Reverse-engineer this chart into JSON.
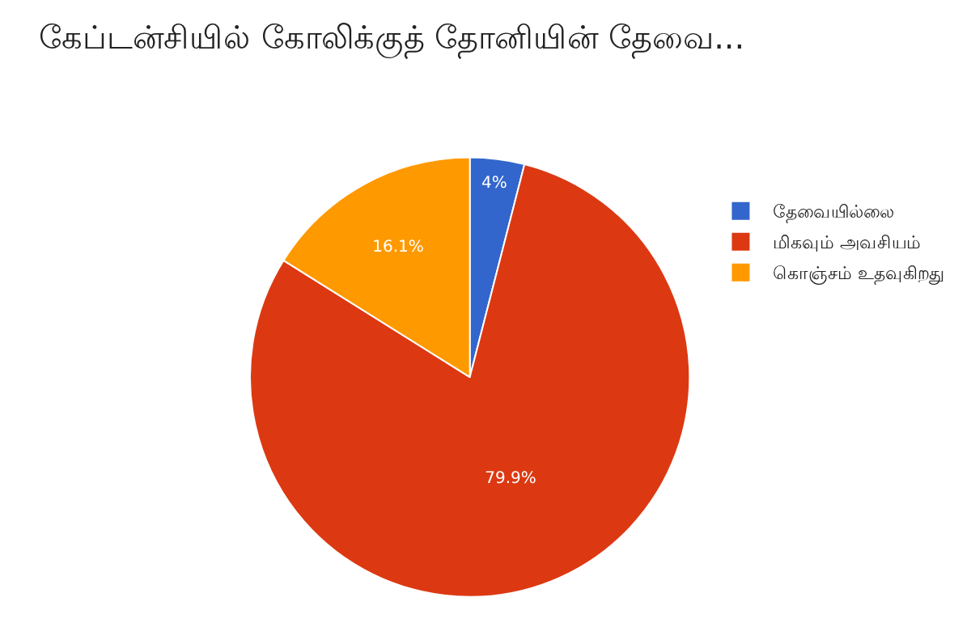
{
  "chart_data": {
    "type": "pie",
    "title": "கேப்டன்சியில் கோலிக்குத் தோனியின் தேவை...",
    "categories": [
      "தேவையில்லை",
      "மிகவும் அவசியம்",
      "கொஞ்சம் உதவுகிறது"
    ],
    "values": [
      4,
      79.9,
      16.1
    ],
    "value_labels": [
      "4%",
      "79.9%",
      "16.1%"
    ],
    "colors": [
      "#3366cc",
      "#dc3912",
      "#ff9900"
    ],
    "legend": "right"
  }
}
